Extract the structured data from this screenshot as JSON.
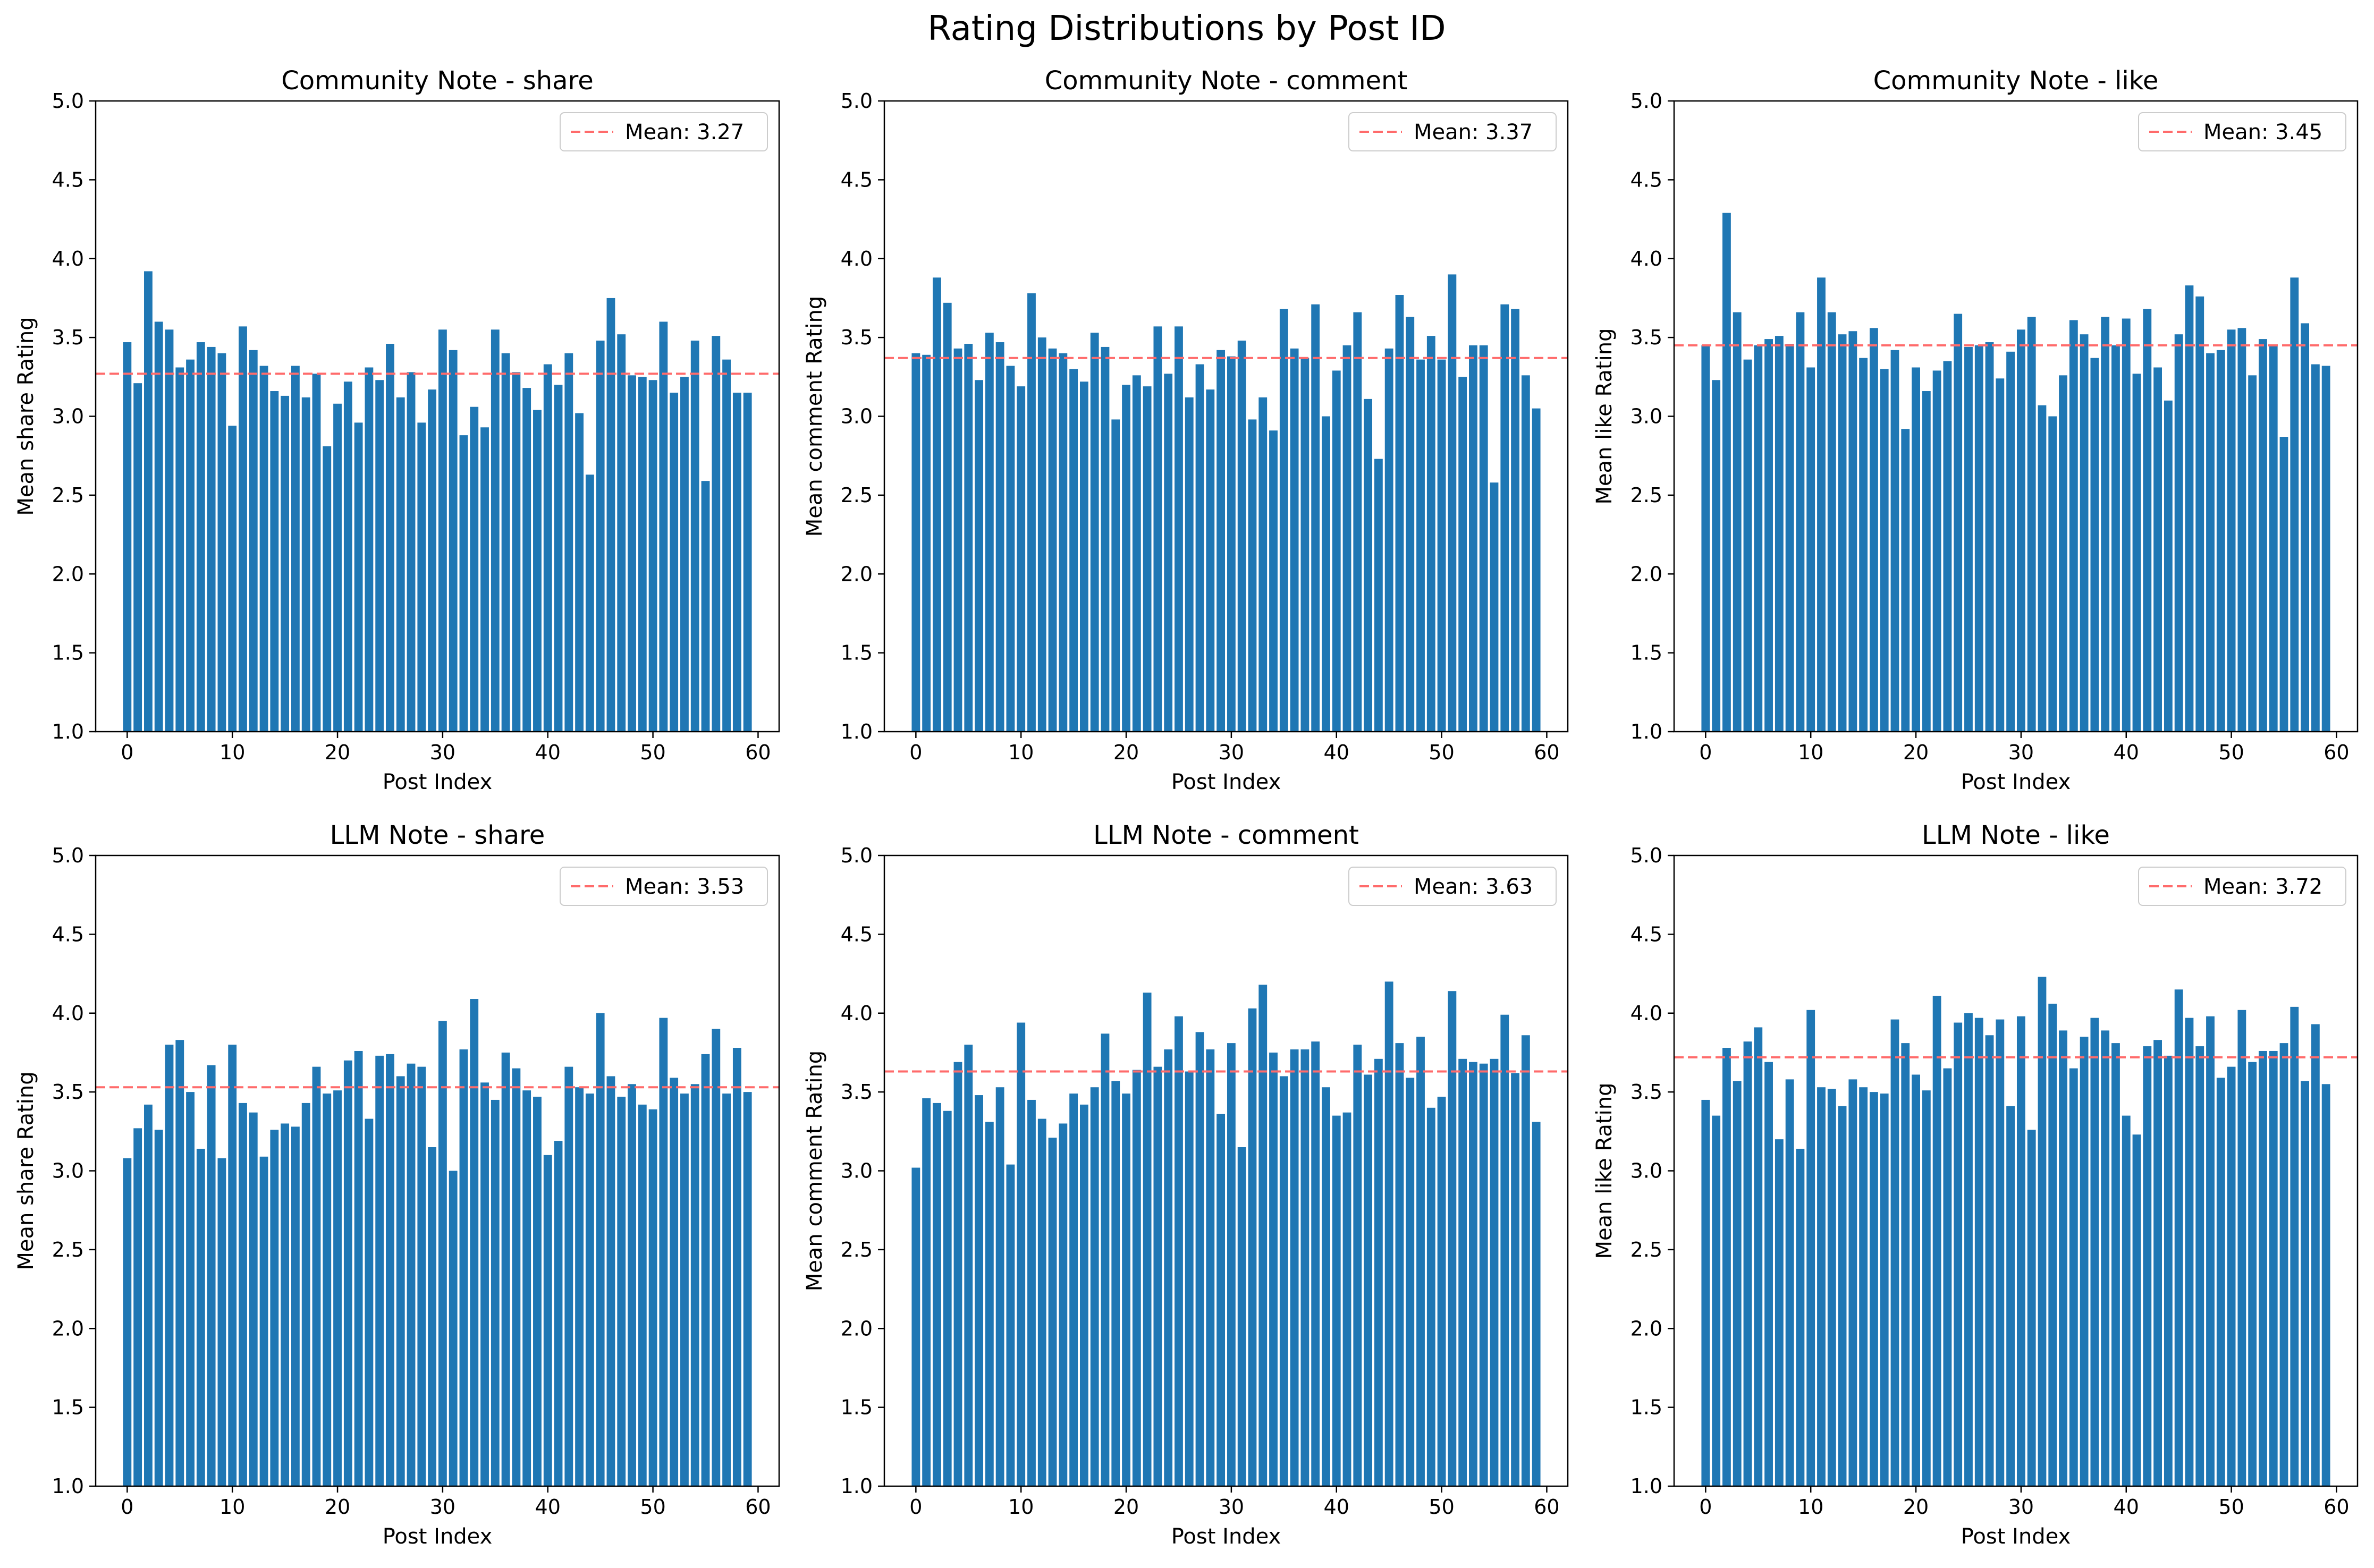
{
  "figure": {
    "title": "Rating Distributions by Post ID"
  },
  "style": {
    "bar_color": "#1f77b4",
    "mean_line_color": "#ff6b6b",
    "axis_color": "#000000"
  },
  "chart_data": [
    {
      "type": "bar",
      "title": "Community Note - share",
      "xlabel": "Post Index",
      "ylabel": "Mean share Rating",
      "xlim": [
        -3,
        62
      ],
      "ylim": [
        1.0,
        5.0
      ],
      "xticks": [
        0,
        10,
        20,
        30,
        40,
        50,
        60
      ],
      "yticks": [
        1.0,
        1.5,
        2.0,
        2.5,
        3.0,
        3.5,
        4.0,
        4.5,
        5.0
      ],
      "mean": 3.27,
      "legend": "Mean: 3.27",
      "legend_loc": "upper right",
      "values": [
        3.47,
        3.21,
        3.92,
        3.6,
        3.55,
        3.31,
        3.36,
        3.47,
        3.44,
        3.4,
        2.94,
        3.57,
        3.42,
        3.32,
        3.16,
        3.13,
        3.32,
        3.12,
        3.27,
        2.81,
        3.08,
        3.22,
        2.96,
        3.31,
        3.23,
        3.46,
        3.12,
        3.28,
        2.96,
        3.17,
        3.55,
        3.42,
        2.88,
        3.06,
        2.93,
        3.55,
        3.4,
        3.28,
        3.18,
        3.04,
        3.33,
        3.2,
        3.4,
        3.02,
        2.63,
        3.48,
        3.75,
        3.52,
        3.26,
        3.25,
        3.23,
        3.6,
        3.15,
        3.25,
        3.48,
        2.59,
        3.51,
        3.36,
        3.15,
        3.15
      ]
    },
    {
      "type": "bar",
      "title": "Community Note - comment",
      "xlabel": "Post Index",
      "ylabel": "Mean comment Rating",
      "xlim": [
        -3,
        62
      ],
      "ylim": [
        1.0,
        5.0
      ],
      "xticks": [
        0,
        10,
        20,
        30,
        40,
        50,
        60
      ],
      "yticks": [
        1.0,
        1.5,
        2.0,
        2.5,
        3.0,
        3.5,
        4.0,
        4.5,
        5.0
      ],
      "mean": 3.37,
      "legend": "Mean: 3.37",
      "legend_loc": "upper right",
      "values": [
        3.4,
        3.39,
        3.88,
        3.72,
        3.43,
        3.46,
        3.23,
        3.53,
        3.47,
        3.32,
        3.19,
        3.78,
        3.5,
        3.43,
        3.4,
        3.3,
        3.22,
        3.53,
        3.44,
        2.98,
        3.2,
        3.26,
        3.19,
        3.57,
        3.27,
        3.57,
        3.12,
        3.33,
        3.17,
        3.42,
        3.38,
        3.48,
        2.98,
        3.12,
        2.91,
        3.68,
        3.43,
        3.37,
        3.71,
        3.0,
        3.29,
        3.45,
        3.66,
        3.11,
        2.73,
        3.43,
        3.77,
        3.63,
        3.36,
        3.51,
        3.36,
        3.9,
        3.25,
        3.45,
        3.45,
        2.58,
        3.71,
        3.68,
        3.26,
        3.05
      ]
    },
    {
      "type": "bar",
      "title": "Community Note - like",
      "xlabel": "Post Index",
      "ylabel": "Mean like Rating",
      "xlim": [
        -3,
        62
      ],
      "ylim": [
        1.0,
        5.0
      ],
      "xticks": [
        0,
        10,
        20,
        30,
        40,
        50,
        60
      ],
      "yticks": [
        1.0,
        1.5,
        2.0,
        2.5,
        3.0,
        3.5,
        4.0,
        4.5,
        5.0
      ],
      "mean": 3.45,
      "legend": "Mean: 3.45",
      "legend_loc": "upper right",
      "values": [
        3.45,
        3.23,
        4.29,
        3.66,
        3.36,
        3.45,
        3.49,
        3.51,
        3.46,
        3.66,
        3.31,
        3.88,
        3.66,
        3.52,
        3.54,
        3.37,
        3.56,
        3.3,
        3.42,
        2.92,
        3.31,
        3.16,
        3.29,
        3.35,
        3.65,
        3.44,
        3.45,
        3.47,
        3.24,
        3.41,
        3.55,
        3.63,
        3.07,
        3.0,
        3.26,
        3.61,
        3.52,
        3.37,
        3.63,
        3.45,
        3.62,
        3.27,
        3.68,
        3.31,
        3.1,
        3.52,
        3.83,
        3.76,
        3.4,
        3.42,
        3.55,
        3.56,
        3.26,
        3.49,
        3.45,
        2.87,
        3.88,
        3.59,
        3.33,
        3.32
      ]
    },
    {
      "type": "bar",
      "title": "LLM Note - share",
      "xlabel": "Post Index",
      "ylabel": "Mean share Rating",
      "xlim": [
        -3,
        62
      ],
      "ylim": [
        1.0,
        5.0
      ],
      "xticks": [
        0,
        10,
        20,
        30,
        40,
        50,
        60
      ],
      "yticks": [
        1.0,
        1.5,
        2.0,
        2.5,
        3.0,
        3.5,
        4.0,
        4.5,
        5.0
      ],
      "mean": 3.53,
      "legend": "Mean: 3.53",
      "legend_loc": "upper right",
      "values": [
        3.08,
        3.27,
        3.42,
        3.26,
        3.8,
        3.83,
        3.5,
        3.14,
        3.67,
        3.08,
        3.8,
        3.43,
        3.37,
        3.09,
        3.26,
        3.3,
        3.28,
        3.43,
        3.66,
        3.49,
        3.51,
        3.7,
        3.76,
        3.33,
        3.73,
        3.74,
        3.6,
        3.68,
        3.66,
        3.15,
        3.95,
        3.0,
        3.77,
        4.09,
        3.56,
        3.45,
        3.75,
        3.65,
        3.51,
        3.47,
        3.1,
        3.19,
        3.66,
        3.53,
        3.49,
        4.0,
        3.6,
        3.47,
        3.55,
        3.42,
        3.39,
        3.97,
        3.59,
        3.49,
        3.55,
        3.74,
        3.9,
        3.49,
        3.78,
        3.5
      ]
    },
    {
      "type": "bar",
      "title": "LLM Note - comment",
      "xlabel": "Post Index",
      "ylabel": "Mean comment Rating",
      "xlim": [
        -3,
        62
      ],
      "ylim": [
        1.0,
        5.0
      ],
      "xticks": [
        0,
        10,
        20,
        30,
        40,
        50,
        60
      ],
      "yticks": [
        1.0,
        1.5,
        2.0,
        2.5,
        3.0,
        3.5,
        4.0,
        4.5,
        5.0
      ],
      "mean": 3.63,
      "legend": "Mean: 3.63",
      "legend_loc": "upper right",
      "values": [
        3.02,
        3.46,
        3.43,
        3.38,
        3.69,
        3.8,
        3.48,
        3.31,
        3.53,
        3.04,
        3.94,
        3.45,
        3.33,
        3.21,
        3.3,
        3.49,
        3.42,
        3.53,
        3.87,
        3.57,
        3.49,
        3.64,
        4.13,
        3.66,
        3.77,
        3.98,
        3.63,
        3.88,
        3.77,
        3.36,
        3.81,
        3.15,
        4.03,
        4.18,
        3.75,
        3.6,
        3.77,
        3.77,
        3.82,
        3.53,
        3.35,
        3.37,
        3.8,
        3.61,
        3.71,
        4.2,
        3.81,
        3.59,
        3.85,
        3.4,
        3.47,
        4.14,
        3.71,
        3.69,
        3.68,
        3.71,
        3.99,
        3.62,
        3.86,
        3.31
      ]
    },
    {
      "type": "bar",
      "title": "LLM Note - like",
      "xlabel": "Post Index",
      "ylabel": "Mean like Rating",
      "xlim": [
        -3,
        62
      ],
      "ylim": [
        1.0,
        5.0
      ],
      "xticks": [
        0,
        10,
        20,
        30,
        40,
        50,
        60
      ],
      "yticks": [
        1.0,
        1.5,
        2.0,
        2.5,
        3.0,
        3.5,
        4.0,
        4.5,
        5.0
      ],
      "mean": 3.72,
      "legend": "Mean: 3.72",
      "legend_loc": "upper right",
      "values": [
        3.45,
        3.35,
        3.78,
        3.57,
        3.82,
        3.91,
        3.69,
        3.2,
        3.58,
        3.14,
        4.02,
        3.53,
        3.52,
        3.41,
        3.58,
        3.53,
        3.5,
        3.49,
        3.96,
        3.81,
        3.61,
        3.51,
        4.11,
        3.65,
        3.94,
        4.0,
        3.97,
        3.86,
        3.96,
        3.41,
        3.98,
        3.26,
        4.23,
        4.06,
        3.89,
        3.65,
        3.85,
        3.97,
        3.89,
        3.81,
        3.35,
        3.23,
        3.79,
        3.83,
        3.73,
        4.15,
        3.97,
        3.79,
        3.98,
        3.59,
        3.66,
        4.02,
        3.69,
        3.76,
        3.76,
        3.81,
        4.04,
        3.57,
        3.93,
        3.55
      ]
    }
  ]
}
